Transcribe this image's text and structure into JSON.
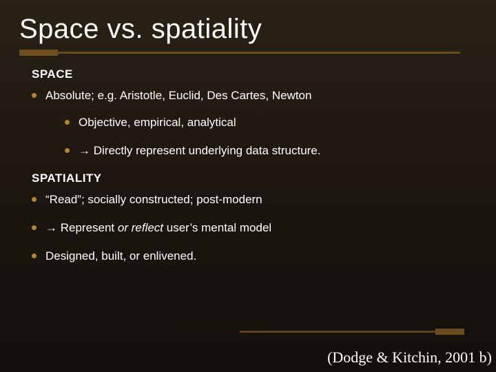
{
  "colors": {
    "background_gradient_top": "#2a2216",
    "background_gradient_mid": "#1c1610",
    "background_gradient_bottom": "#13100b",
    "title_color": "#ffffff",
    "body_text_color": "#ffffff",
    "bullet_color": "#b8852c",
    "rule_color": "#6b4a1e",
    "rule_stub_color": "#6f4f20"
  },
  "typography": {
    "title_font": "Arial",
    "title_size_pt": 30,
    "title_weight": "normal",
    "body_font": "Verdana",
    "body_size_pt": 13,
    "heading_weight": "bold",
    "citation_font": "Times New Roman",
    "citation_size_pt": 16
  },
  "title": "Space vs. spatiality",
  "sections": [
    {
      "heading": "SPACE",
      "items": [
        {
          "text": "Absolute; e.g. Aristotle, Euclid, Des Cartes, Newton",
          "sub": [
            {
              "text": "Objective, empirical, analytical"
            },
            {
              "text_prefix_arrow": true,
              "text": " Directly represent underlying data structure."
            }
          ]
        }
      ]
    },
    {
      "heading": "SPATIALITY",
      "items": [
        {
          "text": "“Read”; socially constructed; post-modern"
        },
        {
          "text_prefix_arrow": true,
          "text_html": " Represent <span class=\"italic\">or reflect</span> user’s mental model"
        },
        {
          "text": "Designed, built, or enlivened."
        }
      ]
    }
  ],
  "citation": "(Dodge & Kitchin, 2001 b)",
  "arrow_glyph": "→"
}
